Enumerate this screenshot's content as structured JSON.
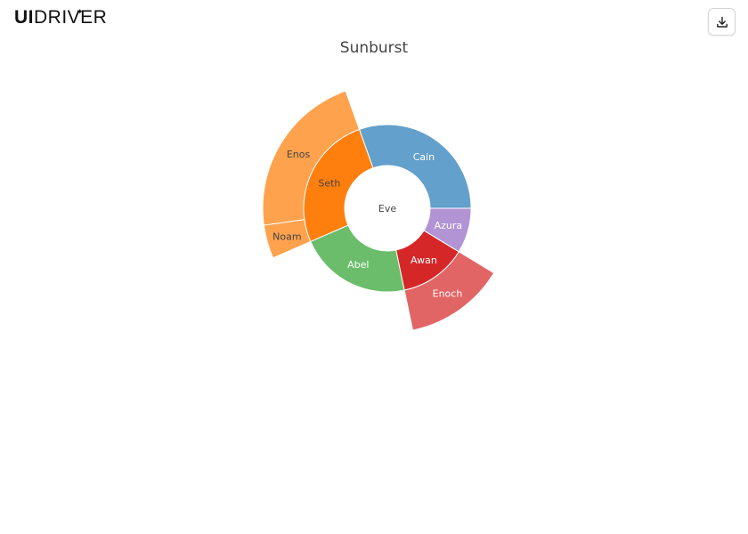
{
  "app": {
    "logo_text_bold": "UI",
    "logo_text": "DRIVER",
    "logo_star": "✦",
    "download_icon": "download-icon"
  },
  "chart_data": {
    "type": "sunburst",
    "title": "Sunburst",
    "root": "Eve",
    "nodes": [
      {
        "id": "Eve",
        "parent": "",
        "value": 0,
        "color": "#ffffff",
        "label_color": "#444444"
      },
      {
        "id": "Cain",
        "parent": "Eve",
        "value": 14,
        "color": "#63a0cb",
        "label_color": "#ffffff"
      },
      {
        "id": "Seth",
        "parent": "Eve",
        "value": 12,
        "color": "#ff7f0e",
        "label_color": "#444444"
      },
      {
        "id": "Enos",
        "parent": "Seth",
        "value": 10,
        "color": "#ffa24e",
        "label_color": "#444444"
      },
      {
        "id": "Noam",
        "parent": "Seth",
        "value": 2,
        "color": "#ffa24e",
        "label_color": "#444444"
      },
      {
        "id": "Abel",
        "parent": "Eve",
        "value": 10,
        "color": "#6bbd6b",
        "label_color": "#ffffff"
      },
      {
        "id": "Awan",
        "parent": "Eve",
        "value": 6,
        "color": "#d62728",
        "label_color": "#ffffff"
      },
      {
        "id": "Enoch",
        "parent": "Awan",
        "value": 6,
        "color": "#e26566",
        "label_color": "#ffffff"
      },
      {
        "id": "Azura",
        "parent": "Eve",
        "value": 4,
        "color": "#b293d4",
        "label_color": "#ffffff"
      }
    ],
    "order": [
      "Cain",
      "Seth",
      "Abel",
      "Awan",
      "Azura"
    ]
  }
}
